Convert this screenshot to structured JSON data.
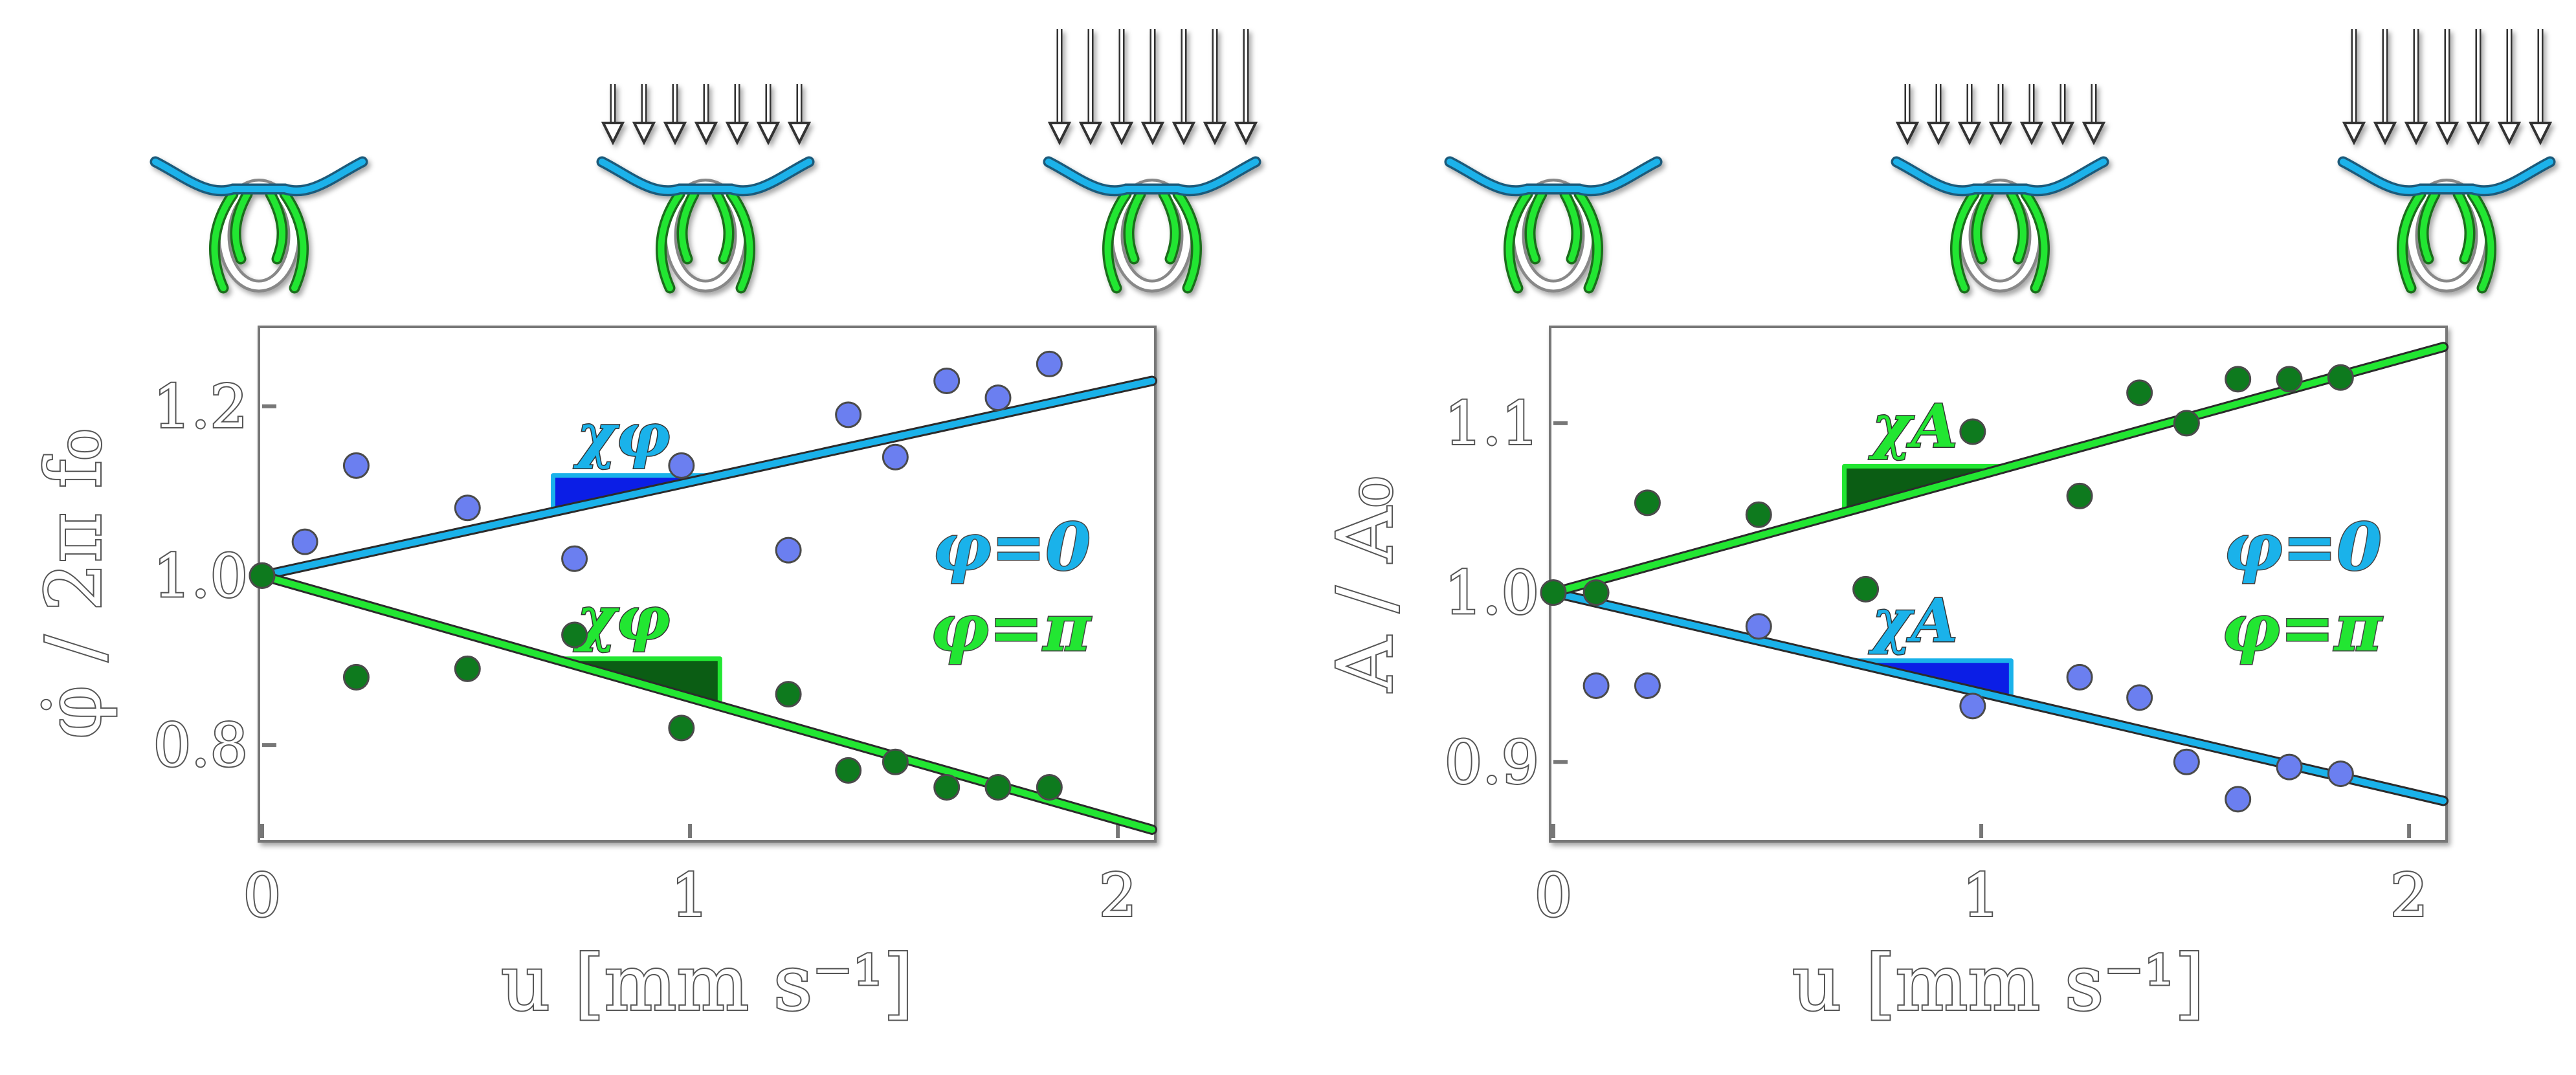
{
  "colors": {
    "phi0": "#1ab2ea",
    "phipi": "#22e632",
    "phi0_points": "#6b7ff0",
    "phipi_points": "#0e7a1e",
    "phi0_triangle": "#0b1ee6",
    "phipi_triangle": "#0b5d14",
    "frame": "#777777"
  },
  "icons": {
    "shape": "gripper-ring",
    "arrow_counts": [
      0,
      7,
      7
    ],
    "arrow_lengths": [
      "none",
      "short",
      "long"
    ]
  },
  "chart_data": [
    {
      "type": "scatter",
      "xlabel": "u [mm s⁻¹]",
      "ylabel": "φ̇ / 2π f₀",
      "xlim": [
        0,
        2.08
      ],
      "ylim": [
        0.69,
        1.29
      ],
      "xticks": [
        0,
        1,
        2
      ],
      "xtick_labels": [
        "0",
        "1",
        "2"
      ],
      "yticks": [
        0.8,
        1.0,
        1.2
      ],
      "ytick_labels": [
        "0.8",
        "1.0",
        "1.2"
      ],
      "grid": false,
      "legend_position": "right",
      "legend": [
        {
          "label": "φ=0",
          "color_key": "phi0"
        },
        {
          "label": "φ=π",
          "color_key": "phipi"
        }
      ],
      "slope_label": "χφ",
      "series": [
        {
          "name": "φ=0",
          "points": [
            [
              0,
              1.0
            ],
            [
              0.1,
              1.04
            ],
            [
              0.22,
              1.13
            ],
            [
              0.48,
              1.08
            ],
            [
              0.73,
              1.02
            ],
            [
              0.98,
              1.13
            ],
            [
              1.23,
              1.03
            ],
            [
              1.37,
              1.19
            ],
            [
              1.48,
              1.14
            ],
            [
              1.6,
              1.23
            ],
            [
              1.72,
              1.21
            ],
            [
              1.84,
              1.25
            ]
          ],
          "fit": [
            [
              0,
              1.0
            ],
            [
              2.08,
              1.23
            ]
          ]
        },
        {
          "name": "φ=π",
          "points": [
            [
              0,
              1.0
            ],
            [
              0.22,
              0.88
            ],
            [
              0.48,
              0.89
            ],
            [
              0.73,
              0.93
            ],
            [
              0.98,
              0.82
            ],
            [
              1.23,
              0.86
            ],
            [
              1.37,
              0.77
            ],
            [
              1.48,
              0.78
            ],
            [
              1.6,
              0.75
            ],
            [
              1.72,
              0.75
            ],
            [
              1.84,
              0.75
            ]
          ],
          "fit": [
            [
              0,
              1.0
            ],
            [
              2.08,
              0.7
            ]
          ]
        }
      ],
      "slope_triangles": [
        {
          "series": "φ=0",
          "x0": 0.68,
          "x1": 1.07
        },
        {
          "series": "φ=π",
          "x0": 0.68,
          "x1": 1.07
        }
      ]
    },
    {
      "type": "scatter",
      "xlabel": "u [mm s⁻¹]",
      "ylabel": "A / A₀",
      "xlim": [
        0,
        2.08
      ],
      "ylim": [
        0.855,
        1.155
      ],
      "xticks": [
        0,
        1,
        2
      ],
      "xtick_labels": [
        "0",
        "1",
        "2"
      ],
      "yticks": [
        0.9,
        1.0,
        1.1
      ],
      "ytick_labels": [
        "0.9",
        "1.0",
        "1.1"
      ],
      "grid": false,
      "legend_position": "right",
      "legend": [
        {
          "label": "φ=0",
          "color_key": "phi0"
        },
        {
          "label": "φ=π",
          "color_key": "phipi"
        }
      ],
      "slope_label": "χA",
      "series": [
        {
          "name": "φ=0",
          "points": [
            [
              0,
              1.0
            ],
            [
              0.1,
              0.945
            ],
            [
              0.22,
              0.945
            ],
            [
              0.48,
              0.98
            ],
            [
              0.98,
              0.933
            ],
            [
              1.23,
              0.95
            ],
            [
              1.37,
              0.938
            ],
            [
              1.48,
              0.9
            ],
            [
              1.6,
              0.878
            ],
            [
              1.72,
              0.897
            ],
            [
              1.84,
              0.893
            ]
          ],
          "fit": [
            [
              0,
              1.0
            ],
            [
              2.08,
              0.877
            ]
          ]
        },
        {
          "name": "φ=π",
          "points": [
            [
              0,
              1.0
            ],
            [
              0.1,
              1.0
            ],
            [
              0.22,
              1.053
            ],
            [
              0.48,
              1.046
            ],
            [
              0.73,
              1.002
            ],
            [
              0.98,
              1.095
            ],
            [
              1.23,
              1.057
            ],
            [
              1.37,
              1.118
            ],
            [
              1.48,
              1.1
            ],
            [
              1.6,
              1.126
            ],
            [
              1.72,
              1.126
            ],
            [
              1.84,
              1.127
            ]
          ],
          "fit": [
            [
              0,
              1.0
            ],
            [
              2.08,
              1.145
            ]
          ]
        }
      ],
      "slope_triangles": [
        {
          "series": "φ=π",
          "x0": 0.68,
          "x1": 1.07
        },
        {
          "series": "φ=0",
          "x0": 0.68,
          "x1": 1.07
        }
      ]
    }
  ]
}
